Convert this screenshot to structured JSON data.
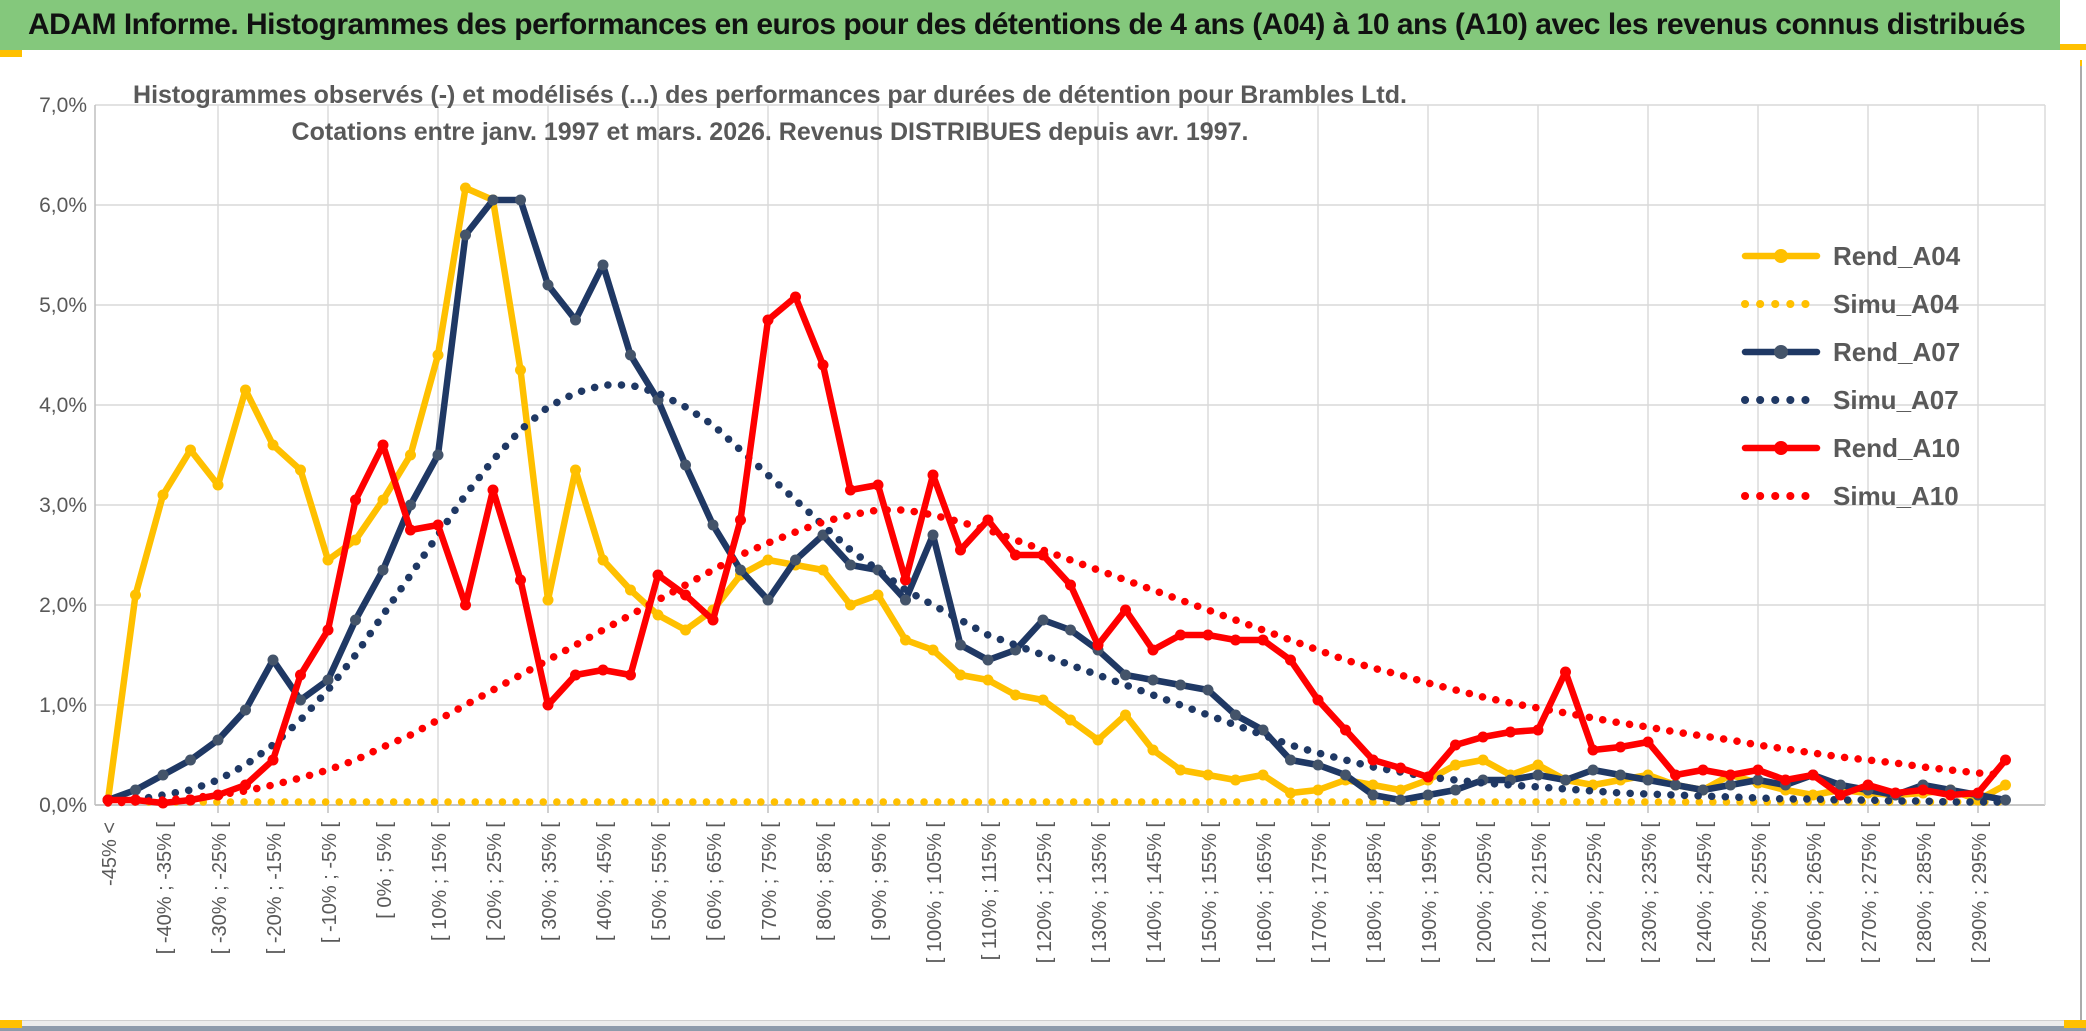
{
  "window": {
    "title": "ADAM Informe. Histogrammes des performances en euros pour des détentions de 4 ans (A04) à 10 ans (A10) avec les revenus connus distribués",
    "header_bg": "#84C87C",
    "accent_color": "#FFC000"
  },
  "chart_data": {
    "type": "line",
    "title_line1": "Histogrammes observés (-) et modélisés (...) des performances par durées de détention pour Brambles Ltd.",
    "title_line2": "Cotations entre janv. 1997 et mars. 2026. Revenus DISTRIBUES depuis avr. 1997.",
    "ylabel": "",
    "xlabel": "",
    "ylim": [
      0,
      7
    ],
    "y_ticks": [
      "0,0%",
      "1,0%",
      "2,0%",
      "3,0%",
      "4,0%",
      "5,0%",
      "6,0%",
      "7,0%"
    ],
    "grid": true,
    "legend_position": "right",
    "text_color": "#595959",
    "grid_color": "#D9D9D9",
    "axis_color": "#BFBFBF",
    "bins": 70,
    "x_tick_labels_every_2_bins": [
      "-45% <",
      "[ -40% ; -35% [",
      "[ -30% ; -25% [",
      "[ -20% ; -15% [",
      "[ -10% ; -5% [",
      "[ 0% ; 5% [",
      "[ 10% ; 15% [",
      "[ 20% ; 25% [",
      "[ 30% ; 35% [",
      "[ 40% ; 45% [",
      "[ 50% ; 55% [",
      "[ 60% ; 65% [",
      "[ 70% ; 75% [",
      "[ 80% ; 85% [",
      "[ 90% ; 95% [",
      "[ 100% ; 105% [",
      "[ 110% ; 115% [",
      "[ 120% ; 125% [",
      "[ 130% ; 135% [",
      "[ 140% ; 145% [",
      "[ 150% ; 155% [",
      "[ 160% ; 165% [",
      "[ 170% ; 175% [",
      "[ 180% ; 185% [",
      "[ 190% ; 195% [",
      "[ 200% ; 205% [",
      "[ 210% ; 215% [",
      "[ 220% ; 225% [",
      "[ 230% ; 235% [",
      "[ 240% ; 245% [",
      "[ 250% ; 255% [",
      "[ 260% ; 265% [",
      "[ 270% ; 275% [",
      "[ 280% ; 285% [",
      "[ 290% ; 295% ["
    ],
    "series": [
      {
        "name": "Rend_A04",
        "style": "solid",
        "color": "#FFC000",
        "marker_color": "#FFC000",
        "values": [
          0.05,
          2.1,
          3.1,
          3.55,
          3.2,
          4.15,
          3.6,
          3.35,
          2.45,
          2.65,
          3.05,
          3.5,
          4.5,
          6.17,
          6.05,
          4.35,
          2.05,
          3.35,
          2.45,
          2.15,
          1.9,
          1.75,
          1.95,
          2.3,
          2.45,
          2.4,
          2.35,
          2.0,
          2.1,
          1.65,
          1.55,
          1.3,
          1.25,
          1.1,
          1.05,
          0.85,
          0.65,
          0.9,
          0.55,
          0.35,
          0.3,
          0.25,
          0.3,
          0.12,
          0.15,
          0.25,
          0.2,
          0.15,
          0.25,
          0.4,
          0.45,
          0.3,
          0.4,
          0.25,
          0.2,
          0.25,
          0.3,
          0.2,
          0.15,
          0.3,
          0.22,
          0.15,
          0.1,
          0.15,
          0.12,
          0.1,
          0.12,
          0.15,
          0.05,
          0.2
        ]
      },
      {
        "name": "Simu_A04",
        "style": "dotted",
        "color": "#FFC000",
        "values": [
          0.03,
          0.03,
          0.03,
          0.03,
          0.03,
          0.03,
          0.03,
          0.03,
          0.03,
          0.03,
          0.03,
          0.03,
          0.03,
          0.03,
          0.03,
          0.03,
          0.03,
          0.03,
          0.03,
          0.03,
          0.03,
          0.03,
          0.03,
          0.03,
          0.03,
          0.03,
          0.03,
          0.03,
          0.03,
          0.03,
          0.03,
          0.03,
          0.03,
          0.03,
          0.03,
          0.03,
          0.03,
          0.03,
          0.03,
          0.03,
          0.03,
          0.03,
          0.03,
          0.03,
          0.03,
          0.03,
          0.03,
          0.03,
          0.03,
          0.03,
          0.03,
          0.03,
          0.03,
          0.03,
          0.03,
          0.03,
          0.03,
          0.03,
          0.03,
          0.03,
          0.03,
          0.03,
          0.03,
          0.03,
          0.03,
          0.03,
          0.03,
          0.03,
          0.03,
          0.03
        ]
      },
      {
        "name": "Rend_A07",
        "style": "solid",
        "color": "#1F3864",
        "marker_color": "#44546A",
        "values": [
          0.05,
          0.15,
          0.3,
          0.45,
          0.65,
          0.95,
          1.45,
          1.05,
          1.25,
          1.85,
          2.35,
          3.0,
          3.5,
          5.7,
          6.05,
          6.05,
          5.2,
          4.85,
          5.4,
          4.5,
          4.05,
          3.4,
          2.8,
          2.35,
          2.05,
          2.45,
          2.7,
          2.4,
          2.35,
          2.05,
          2.7,
          1.6,
          1.45,
          1.55,
          1.85,
          1.75,
          1.55,
          1.3,
          1.25,
          1.2,
          1.15,
          0.9,
          0.75,
          0.45,
          0.4,
          0.3,
          0.1,
          0.05,
          0.1,
          0.15,
          0.25,
          0.25,
          0.3,
          0.25,
          0.35,
          0.3,
          0.25,
          0.2,
          0.15,
          0.2,
          0.25,
          0.2,
          0.3,
          0.2,
          0.15,
          0.1,
          0.2,
          0.15,
          0.1,
          0.05
        ]
      },
      {
        "name": "Simu_A07",
        "style": "dotted",
        "color": "#1F3864",
        "values": [
          0.03,
          0.05,
          0.1,
          0.15,
          0.25,
          0.4,
          0.6,
          0.85,
          1.15,
          1.5,
          1.9,
          2.3,
          2.7,
          3.1,
          3.45,
          3.75,
          3.98,
          4.12,
          4.2,
          4.2,
          4.12,
          3.98,
          3.8,
          3.55,
          3.3,
          3.05,
          2.8,
          2.55,
          2.35,
          2.15,
          2.0,
          1.85,
          1.7,
          1.6,
          1.5,
          1.4,
          1.3,
          1.2,
          1.1,
          1.0,
          0.9,
          0.8,
          0.7,
          0.6,
          0.52,
          0.45,
          0.38,
          0.33,
          0.28,
          0.25,
          0.22,
          0.2,
          0.18,
          0.16,
          0.14,
          0.12,
          0.11,
          0.1,
          0.09,
          0.08,
          0.07,
          0.06,
          0.06,
          0.05,
          0.05,
          0.04,
          0.04,
          0.03,
          0.03,
          0.03
        ]
      },
      {
        "name": "Rend_A10",
        "style": "solid",
        "color": "#FF0000",
        "marker_color": "#FF0000",
        "values": [
          0.05,
          0.05,
          0.02,
          0.05,
          0.1,
          0.2,
          0.45,
          1.3,
          1.75,
          3.05,
          3.6,
          2.75,
          2.8,
          2.0,
          3.15,
          2.25,
          1.0,
          1.3,
          1.35,
          1.3,
          2.3,
          2.1,
          1.85,
          2.85,
          4.85,
          5.08,
          4.4,
          3.15,
          3.2,
          2.25,
          3.3,
          2.55,
          2.85,
          2.5,
          2.5,
          2.2,
          1.6,
          1.95,
          1.55,
          1.7,
          1.7,
          1.65,
          1.65,
          1.45,
          1.05,
          0.75,
          0.45,
          0.37,
          0.28,
          0.6,
          0.68,
          0.73,
          0.75,
          1.33,
          0.55,
          0.58,
          0.63,
          0.3,
          0.35,
          0.3,
          0.35,
          0.25,
          0.3,
          0.1,
          0.2,
          0.12,
          0.15,
          0.1,
          0.12,
          0.45
        ]
      },
      {
        "name": "Simu_A10",
        "style": "dotted",
        "color": "#FF0000",
        "values": [
          0.02,
          0.03,
          0.05,
          0.07,
          0.1,
          0.14,
          0.2,
          0.27,
          0.35,
          0.45,
          0.58,
          0.7,
          0.85,
          1.0,
          1.15,
          1.3,
          1.45,
          1.6,
          1.75,
          1.9,
          2.05,
          2.2,
          2.35,
          2.5,
          2.62,
          2.73,
          2.83,
          2.9,
          2.95,
          2.95,
          2.9,
          2.83,
          2.75,
          2.65,
          2.55,
          2.45,
          2.35,
          2.25,
          2.15,
          2.05,
          1.95,
          1.85,
          1.75,
          1.65,
          1.55,
          1.45,
          1.37,
          1.3,
          1.22,
          1.15,
          1.08,
          1.02,
          0.97,
          0.92,
          0.87,
          0.82,
          0.78,
          0.73,
          0.69,
          0.65,
          0.6,
          0.56,
          0.52,
          0.48,
          0.45,
          0.42,
          0.38,
          0.35,
          0.32,
          0.3
        ]
      }
    ]
  }
}
